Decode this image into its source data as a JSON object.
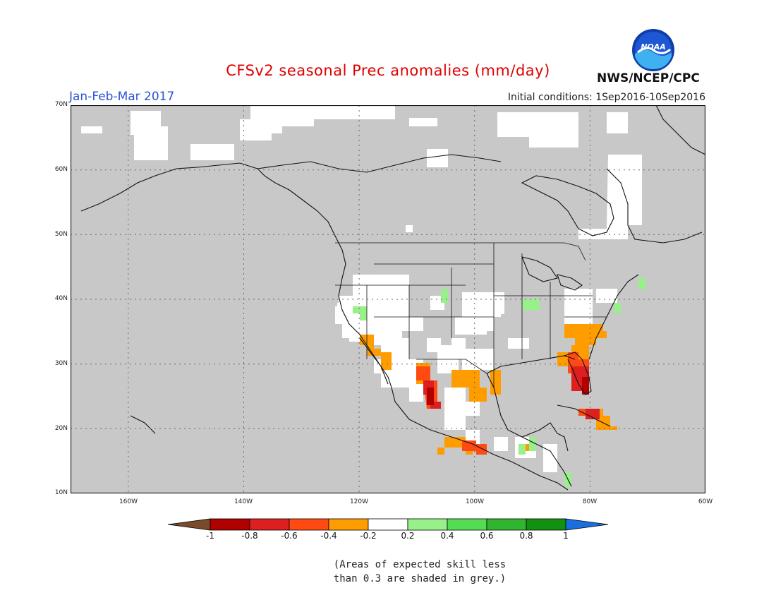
{
  "title": "CFSv2 seasonal Prec anomalies (mm/day)",
  "period": "Jan-Feb-Mar 2017",
  "initial_conditions": "Initial conditions: 1Sep2016-10Sep2016",
  "agency": "NWS/NCEP/CPC",
  "logo_text": "NOAA",
  "map": {
    "lon_range": [
      -170,
      -60
    ],
    "lat_range": [
      10,
      70
    ],
    "lat_ticks": [
      "70N",
      "60N",
      "50N",
      "40N",
      "30N",
      "20N",
      "10N"
    ],
    "lon_ticks": [
      "160W",
      "140W",
      "120W",
      "100W",
      "80W",
      "60W"
    ],
    "grid": "dotted",
    "mask_color": "#c8c8c8"
  },
  "colorbar": {
    "labels": [
      "-1",
      "-0.8",
      "-0.6",
      "-0.4",
      "-0.2",
      "0.2",
      "0.4",
      "0.6",
      "0.8",
      "1"
    ],
    "colors": [
      "#7a4a2c",
      "#b00000",
      "#dd1f1f",
      "#ff4a12",
      "#ff9d00",
      "#ffffff",
      "#98f08a",
      "#55dc55",
      "#2fb52f",
      "#119011",
      "#1a6fe0"
    ]
  },
  "note_line1": "(Areas of expected skill less",
  "note_line2": "than 0.3 are shaded in grey.)"
}
